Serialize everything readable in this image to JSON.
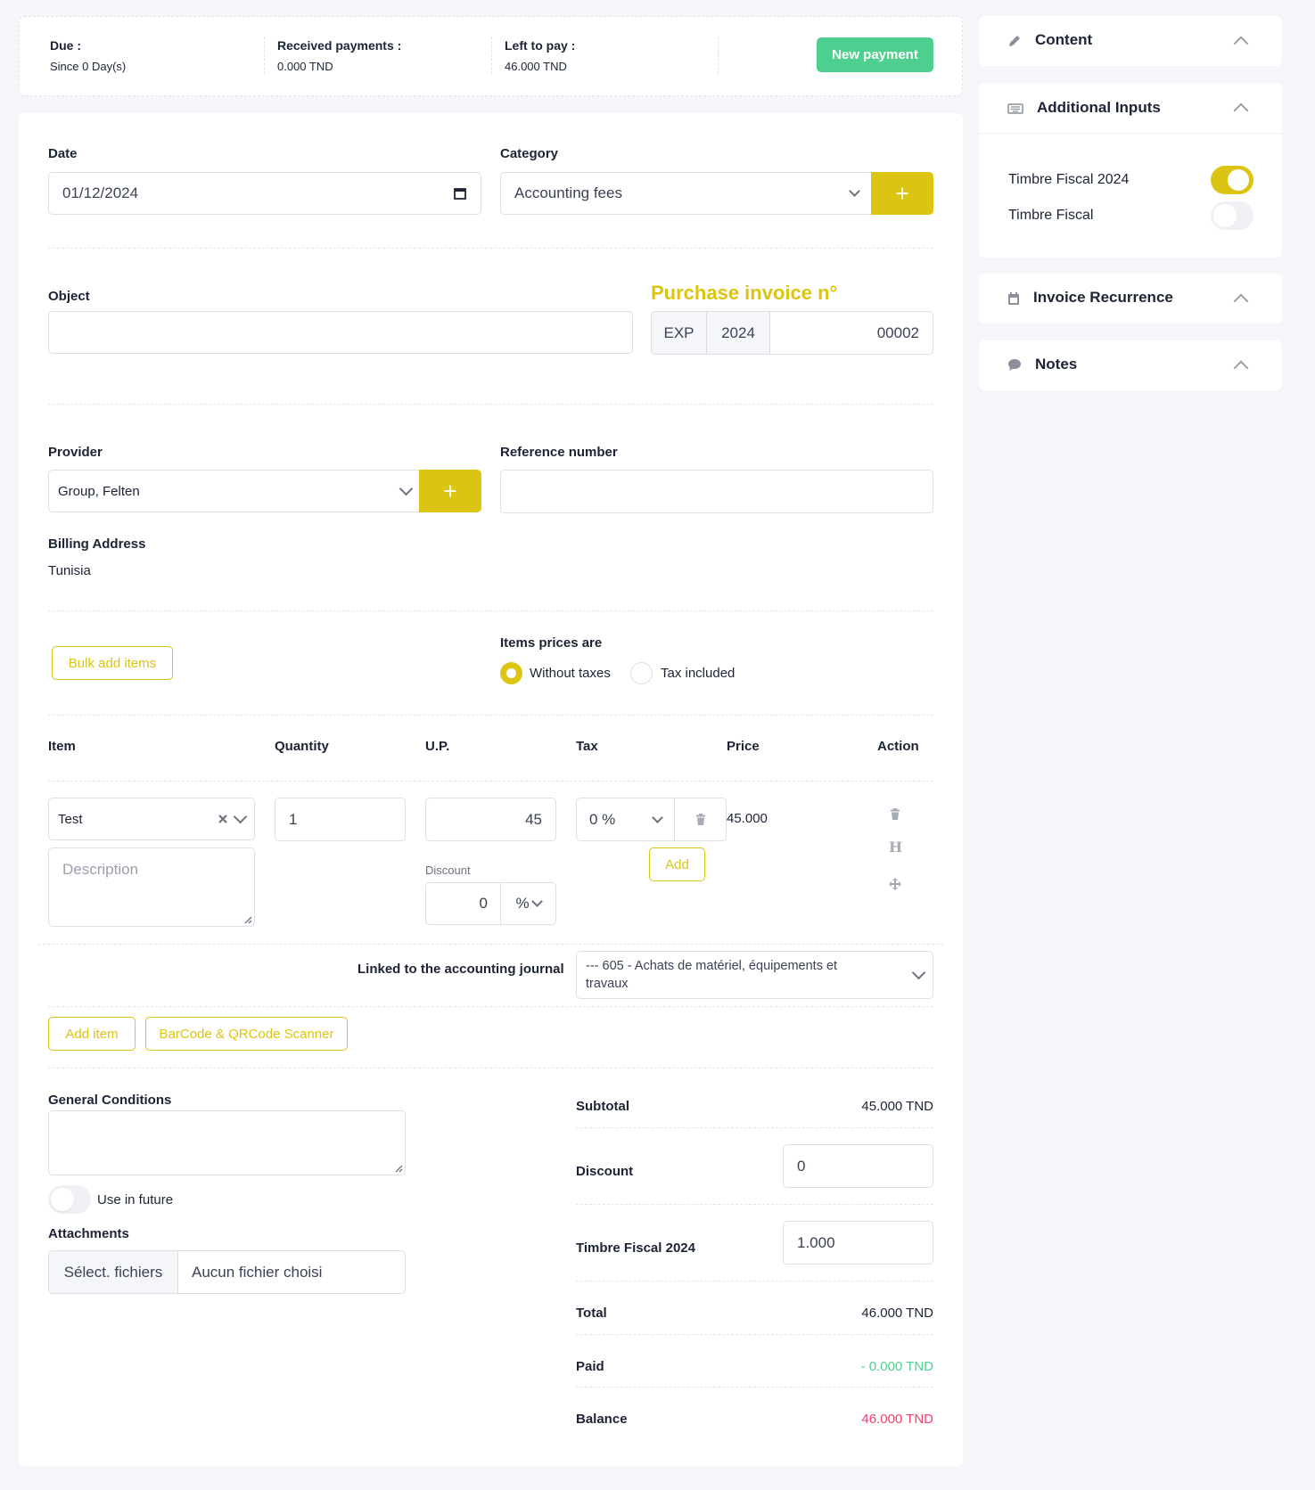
{
  "summary": {
    "due_label": "Due :",
    "due_value": "Since 0 Day(s)",
    "received_label": "Received payments :",
    "received_value": "0.000 TND",
    "left_label": "Left to pay :",
    "left_value": "46.000 TND",
    "new_payment": "New payment"
  },
  "form": {
    "date_label": "Date",
    "date_value": "01/12/2024",
    "category_label": "Category",
    "category_value": "Accounting fees",
    "object_label": "Object",
    "object_value": "",
    "invoice_title": "Purchase invoice n°",
    "invoice_prefix": "EXP",
    "invoice_year": "2024",
    "invoice_number": "00002",
    "provider_label": "Provider",
    "provider_value": "Group, Felten",
    "reference_label": "Reference number",
    "reference_value": "",
    "billing_label": "Billing Address",
    "billing_value": "Tunisia",
    "bulk_add": "Bulk add items",
    "prices_label": "Items prices are",
    "opt_without": "Without taxes",
    "opt_included": "Tax included",
    "add_symbol": "+"
  },
  "table": {
    "headers": [
      "Item",
      "Quantity",
      "U.P.",
      "Tax",
      "Price",
      "Action"
    ],
    "row": {
      "item": "Test",
      "description_placeholder": "Description",
      "quantity": "1",
      "up": "45",
      "discount_label": "Discount",
      "discount_value": "0",
      "discount_unit": "%",
      "tax": "0 %",
      "tax_add": "Add",
      "price": "45.000",
      "h_symbol": "H"
    },
    "journal_label": "Linked to the accounting journal",
    "journal_value": "--- 605 - Achats de matériel, équipements et travaux",
    "add_item": "Add item",
    "scanner": "BarCode & QRCode Scanner"
  },
  "bottom": {
    "conditions_label": "General Conditions",
    "use_future": "Use in future",
    "attachments_label": "Attachments",
    "file_button": "Sélect. fichiers",
    "file_status": "Aucun fichier choisi"
  },
  "totals": {
    "subtotal_label": "Subtotal",
    "subtotal_value": "45.000 TND",
    "discount_label": "Discount",
    "discount_value": "0",
    "timbre_label": "Timbre Fiscal 2024",
    "timbre_value": "1.000",
    "total_label": "Total",
    "total_value": "46.000 TND",
    "paid_label": "Paid",
    "paid_value": "- 0.000 TND",
    "balance_label": "Balance",
    "balance_value": "46.000 TND"
  },
  "sidebar": {
    "content": "Content",
    "additional_inputs": "Additional Inputs",
    "timbre_2024": "Timbre Fiscal 2024",
    "timbre_2024_on": true,
    "timbre": "Timbre Fiscal",
    "timbre_on": false,
    "recurrence": "Invoice Recurrence",
    "notes": "Notes"
  },
  "colors": {
    "accent": "#dcc413",
    "green": "#4fcf8f",
    "red": "#f0416c"
  }
}
